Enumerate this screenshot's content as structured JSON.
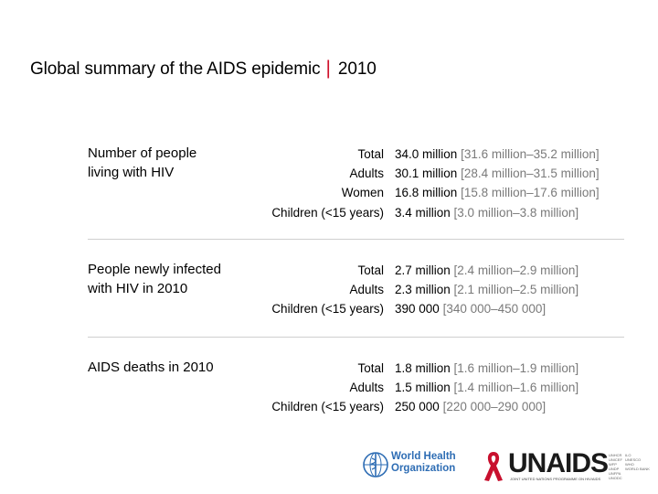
{
  "title": {
    "main": "Global summary of the AIDS epidemic",
    "separator": "|",
    "year": "2010"
  },
  "sections": [
    {
      "heading_line1": "Number of people",
      "heading_line2": "living with HIV",
      "rows": [
        {
          "label": "Total",
          "value": "34.0 million",
          "range": "[31.6 million–35.2 million]"
        },
        {
          "label": "Adults",
          "value": "30.1 million",
          "range": "[28.4 million–31.5 million]"
        },
        {
          "label": "Women",
          "value": "16.8 million",
          "range": "[15.8 million–17.6 million]"
        },
        {
          "label": "Children (<15 years)",
          "value": "3.4 million",
          "range": "[3.0 million–3.8 million]"
        }
      ]
    },
    {
      "heading_line1": "People newly infected",
      "heading_line2": "with HIV in 2010",
      "rows": [
        {
          "label": "Total",
          "value": "2.7 million",
          "range": "[2.4 million–2.9 million]"
        },
        {
          "label": "Adults",
          "value": "2.3 million",
          "range": "[2.1 million–2.5 million]"
        },
        {
          "label": "Children (<15 years)",
          "value": "390 000",
          "range": "[340 000–450 000]"
        }
      ]
    },
    {
      "heading_line1": "AIDS deaths in 2010",
      "heading_line2": "",
      "rows": [
        {
          "label": "Total",
          "value": "1.8 million",
          "range": "[1.6 million–1.9 million]"
        },
        {
          "label": "Adults",
          "value": "1.5 million",
          "range": "[1.4 million–1.6 million]"
        },
        {
          "label": "Children (<15 years)",
          "value": "250 000",
          "range": "[220 000–290 000]"
        }
      ]
    }
  ],
  "logos": {
    "who_line1": "World Health",
    "who_line2": "Organization",
    "unaids_name": "UNAIDS",
    "unaids_tagline": "JOINT UNITED NATIONS PROGRAMME ON HIV/AIDS",
    "unaids_langs_col1": [
      "UNHCR",
      "UNICEF",
      "WFP",
      "UNDP",
      "UNFPA",
      "UNODC"
    ],
    "unaids_langs_col2": [
      "ILO",
      "UNESCO",
      "WHO",
      "WORLD BANK"
    ]
  },
  "colors": {
    "accent": "#d0112b",
    "range_text": "#7a7a7a",
    "who_blue": "#2e6db4",
    "divider": "#cfcfcf"
  }
}
